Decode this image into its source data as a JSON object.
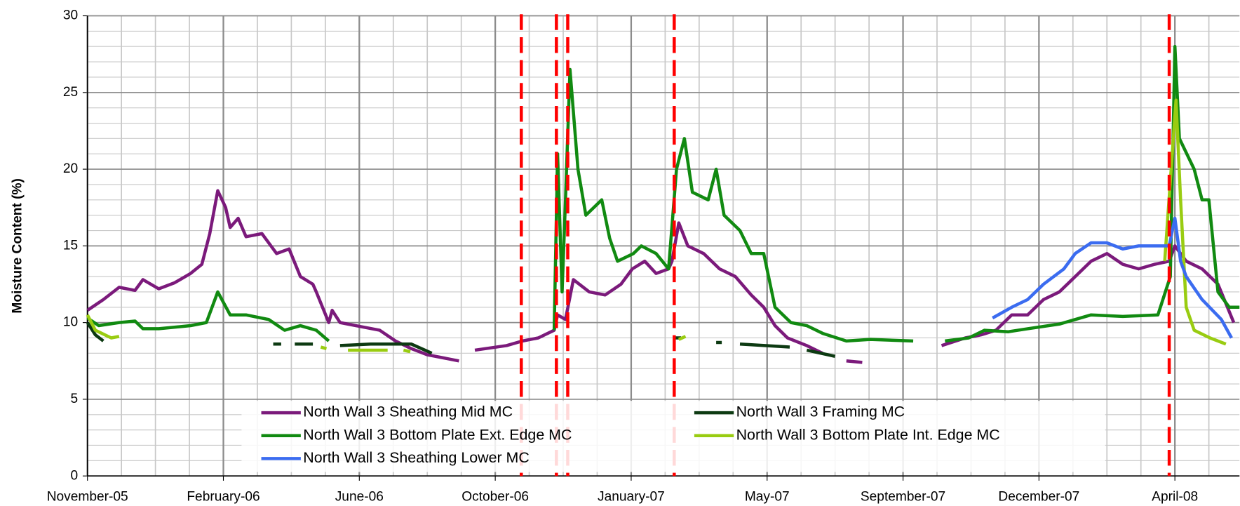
{
  "chart_data": {
    "type": "line",
    "y_label": "Moisture Content (%)",
    "xlim": [
      0,
      1017
    ],
    "ylim": [
      0,
      30
    ],
    "xticks": [
      {
        "value": 0,
        "label": "November-05"
      },
      {
        "value": 120,
        "label": "February-06"
      },
      {
        "value": 240,
        "label": "June-06"
      },
      {
        "value": 360,
        "label": "October-06"
      },
      {
        "value": 480,
        "label": "January-07"
      },
      {
        "value": 600,
        "label": "May-07"
      },
      {
        "value": 720,
        "label": "September-07"
      },
      {
        "value": 840,
        "label": "December-07"
      },
      {
        "value": 960,
        "label": "April-08"
      }
    ],
    "yticks": [
      0,
      5,
      10,
      15,
      20,
      25,
      30
    ],
    "x_minor_step": 30,
    "y_minor_step": 1,
    "grid": true,
    "legend": "bottom",
    "vlines": {
      "color": "#ff0000",
      "x": [
        383,
        414,
        424,
        518,
        955
      ]
    },
    "series": [
      {
        "name": "North Wall 3 Sheathing Mid MC",
        "color": "#7b1a7b",
        "x": [
          0,
          14,
          28,
          42,
          49,
          63,
          77,
          91,
          101,
          108,
          115,
          122,
          126,
          133,
          140,
          154,
          167,
          178,
          188,
          199,
          202,
          213,
          216,
          223,
          237,
          258,
          272,
          286,
          300,
          328,
          335,
          342,
          370,
          384,
          398,
          412,
          415,
          422,
          429,
          443,
          457,
          471,
          481,
          492,
          502,
          513,
          516,
          522,
          530,
          544,
          558,
          572,
          586,
          597,
          607,
          618,
          635,
          649,
          660,
          670,
          684,
          700,
          754,
          775,
          789,
          802,
          816,
          830,
          844,
          858,
          872,
          886,
          900,
          914,
          928,
          942,
          955,
          960,
          970,
          984,
          998,
          1012
        ],
        "values": [
          10.8,
          11.5,
          12.3,
          12.1,
          12.8,
          12.2,
          12.6,
          13.2,
          13.8,
          15.8,
          18.6,
          17.5,
          16.2,
          16.8,
          15.6,
          15.8,
          14.5,
          14.8,
          13,
          12.5,
          12,
          10,
          10.8,
          10,
          9.8,
          9.5,
          8.8,
          8.3,
          7.9,
          7.5,
          null,
          8.2,
          8.5,
          8.8,
          9,
          9.5,
          10.5,
          10.2,
          12.8,
          12,
          11.8,
          12.5,
          13.5,
          14,
          13.2,
          13.5,
          14,
          16.5,
          15,
          14.5,
          13.5,
          13,
          11.8,
          11,
          9.8,
          9,
          8.5,
          8,
          null,
          7.5,
          7.4,
          null,
          8.5,
          9,
          9.2,
          9.5,
          10.5,
          10.5,
          11.5,
          12,
          13,
          14,
          14.5,
          13.8,
          13.5,
          13.8,
          14,
          15,
          14,
          13.5,
          12.5,
          10
        ]
      },
      {
        "name": "North Wall 3 Framing MC",
        "color": "#0d3a12",
        "x": [
          0,
          7,
          14,
          100,
          164,
          171,
          180,
          183,
          199,
          215,
          223,
          250,
          286,
          304,
          400,
          518,
          524,
          540,
          555,
          560,
          570,
          576,
          620,
          628,
          635,
          660
        ],
        "values": [
          10,
          9.2,
          8.8,
          null,
          8.6,
          8.6,
          null,
          8.6,
          8.6,
          null,
          8.5,
          8.6,
          8.6,
          8,
          null,
          9,
          9,
          null,
          8.7,
          8.7,
          null,
          8.6,
          8.4,
          null,
          8.2,
          7.8
        ]
      },
      {
        "name": "North Wall 3 Bottom Plate Ext. Edge MC",
        "color": "#118a11",
        "x": [
          0,
          10,
          28,
          42,
          49,
          63,
          91,
          105,
          115,
          126,
          140,
          160,
          174,
          188,
          202,
          213,
          300,
          412,
          415,
          419,
          422,
          426,
          433,
          440,
          454,
          461,
          468,
          482,
          489,
          502,
          513,
          520,
          527,
          534,
          548,
          555,
          562,
          576,
          586,
          597,
          607,
          621,
          635,
          649,
          670,
          691,
          729,
          745,
          757,
          778,
          792,
          813,
          830,
          858,
          886,
          914,
          945,
          956,
          960,
          964,
          977,
          984,
          990,
          998,
          1008,
          1017
        ],
        "values": [
          10.3,
          9.8,
          10,
          10.1,
          9.6,
          9.6,
          9.8,
          10,
          12,
          10.5,
          10.5,
          10.2,
          9.5,
          9.8,
          9.5,
          8.8,
          null,
          9.5,
          21,
          12,
          18,
          26.5,
          20,
          17,
          18,
          15.5,
          14,
          14.5,
          15,
          14.5,
          13.5,
          20,
          22,
          18.5,
          18,
          20,
          17,
          16,
          14.5,
          14.5,
          11,
          10,
          9.8,
          9.3,
          8.8,
          8.9,
          8.8,
          null,
          8.8,
          9,
          9.5,
          9.4,
          9.6,
          9.9,
          10.5,
          10.4,
          10.5,
          13,
          28,
          22,
          20,
          18,
          18,
          12,
          11,
          11
        ]
      },
      {
        "name": "North Wall 3 Bottom Plate Int. Edge MC",
        "color": "#99cc11",
        "x": [
          0,
          7,
          21,
          28,
          100,
          206,
          211,
          220,
          230,
          265,
          272,
          279,
          285,
          400,
          522,
          528,
          700,
          951,
          961,
          965,
          970,
          977,
          991,
          1005
        ],
        "values": [
          10.5,
          9.5,
          9,
          9.1,
          null,
          8.4,
          8.3,
          null,
          8.2,
          8.2,
          null,
          8.2,
          8.1,
          null,
          8.9,
          9.1,
          null,
          14,
          24.5,
          18,
          11,
          9.5,
          9,
          8.6
        ]
      },
      {
        "name": "North Wall 3 Sheathing Lower MC",
        "color": "#3b6cf0",
        "x": [
          799,
          816,
          830,
          844,
          862,
          872,
          886,
          900,
          914,
          928,
          942,
          955,
          960,
          965,
          970,
          984,
          1001,
          1010
        ],
        "values": [
          10.3,
          11,
          11.5,
          12.5,
          13.5,
          14.5,
          15.2,
          15.2,
          14.8,
          15,
          15,
          15,
          16.8,
          14,
          13,
          11.5,
          10.2,
          9
        ]
      }
    ]
  }
}
